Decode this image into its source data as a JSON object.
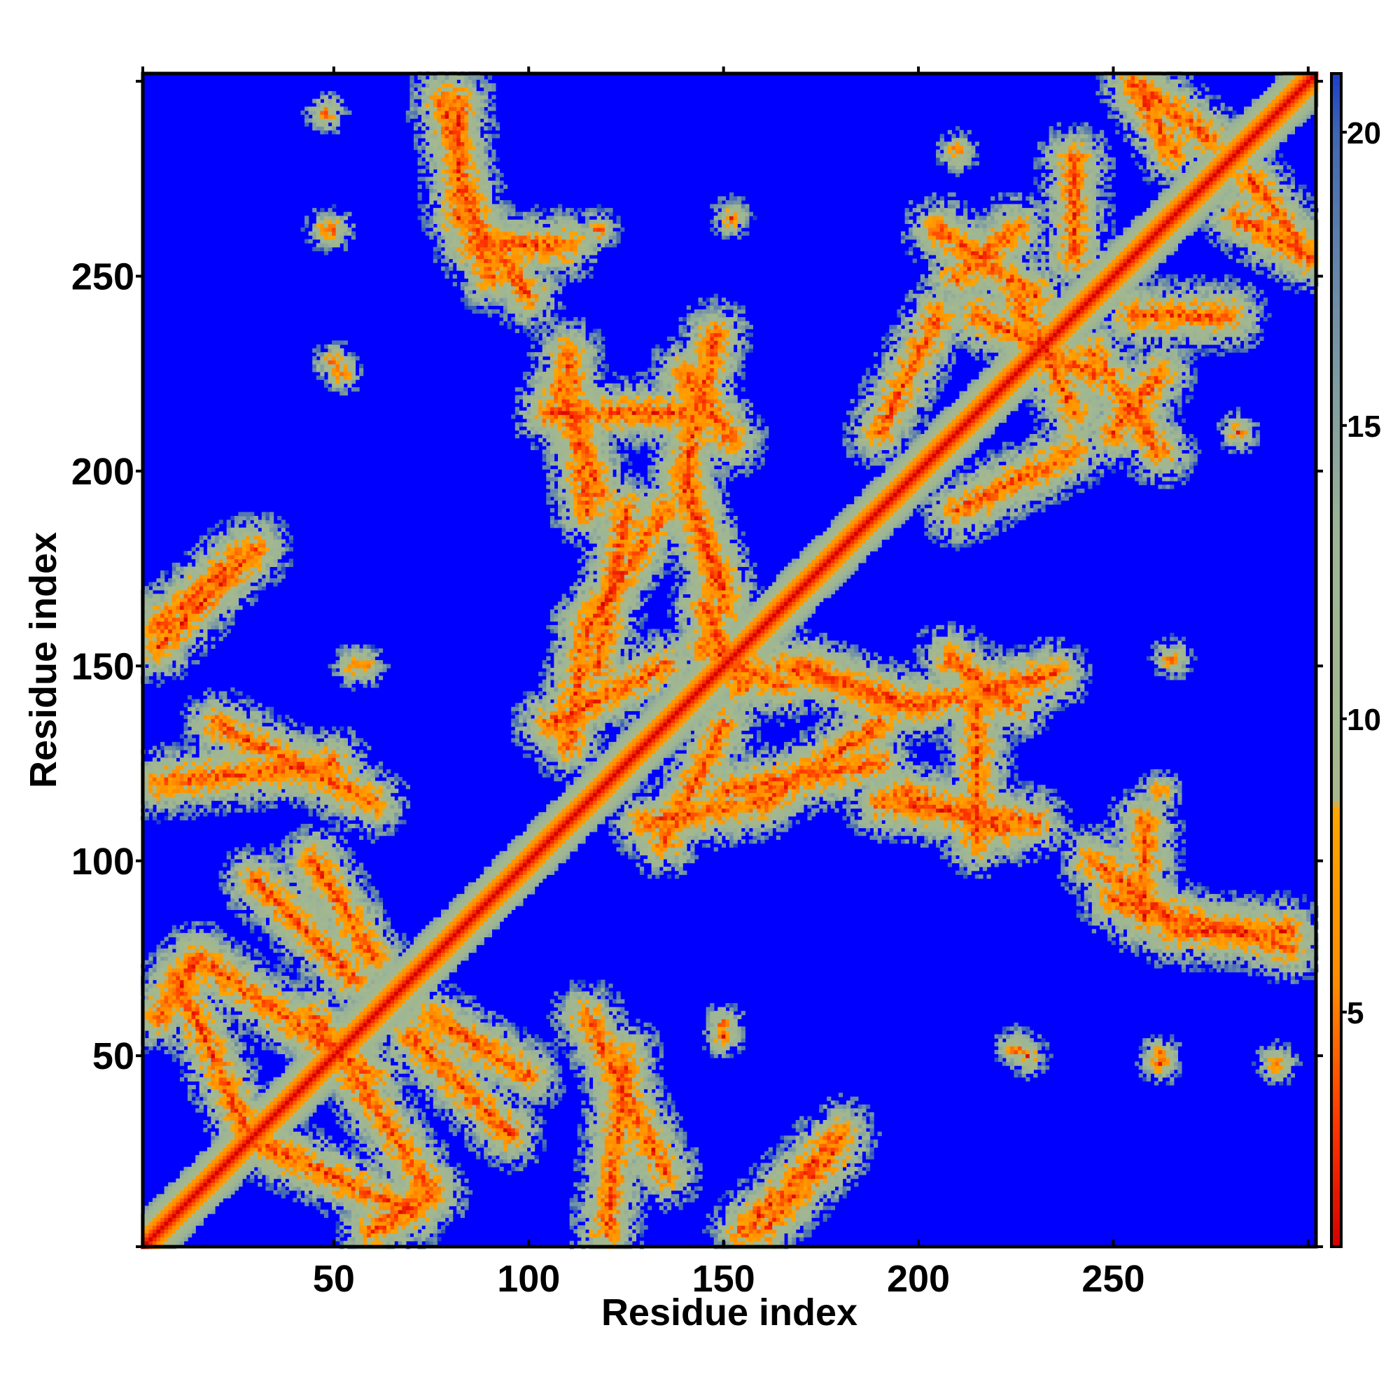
{
  "chart_data": {
    "type": "heatmap",
    "title": "",
    "xlabel": "Residue index",
    "ylabel": "Residue index",
    "n_residues": 302,
    "xlim": [
      1,
      302
    ],
    "ylim": [
      1,
      302
    ],
    "x_ticks": [
      50,
      100,
      150,
      200,
      250
    ],
    "y_ticks": [
      50,
      100,
      150,
      200,
      250
    ],
    "colorbar": {
      "range": [
        1,
        21
      ],
      "ticks": [
        5,
        10,
        15,
        20
      ],
      "stops": [
        {
          "value": 1,
          "color": "#d40000"
        },
        {
          "value": 3,
          "color": "#ff3300"
        },
        {
          "value": 5.5,
          "color": "#ff8c00"
        },
        {
          "value": 8.5,
          "color": "#ffa500"
        },
        {
          "value": 8.6,
          "color": "#a6b98c"
        },
        {
          "value": 13,
          "color": "#9db596"
        },
        {
          "value": 17,
          "color": "#6f8fa8"
        },
        {
          "value": 20,
          "color": "#3f66b3"
        },
        {
          "value": 21,
          "color": "#1c3fc9"
        }
      ]
    },
    "background_color": "#0000ff",
    "contact_features": [
      {
        "kind": "diagonal",
        "x1": 1,
        "y1": 1,
        "x2": 302,
        "y2": 302
      },
      {
        "kind": "band",
        "x1": 5,
        "y1": 60,
        "x2": 15,
        "y2": 75
      },
      {
        "kind": "band",
        "x1": 15,
        "y1": 75,
        "x2": 60,
        "y2": 45
      },
      {
        "kind": "band",
        "x1": 30,
        "y1": 28,
        "x2": 70,
        "y2": 10
      },
      {
        "kind": "band",
        "x1": 45,
        "y1": 100,
        "x2": 60,
        "y2": 75
      },
      {
        "kind": "band",
        "x1": 70,
        "y1": 55,
        "x2": 95,
        "y2": 30
      },
      {
        "kind": "band",
        "x1": 115,
        "y1": 60,
        "x2": 135,
        "y2": 20
      },
      {
        "kind": "band",
        "x1": 155,
        "y1": 5,
        "x2": 180,
        "y2": 30
      },
      {
        "kind": "band",
        "x1": 5,
        "y1": 120,
        "x2": 50,
        "y2": 125
      },
      {
        "kind": "band",
        "x1": 5,
        "y1": 160,
        "x2": 25,
        "y2": 178
      },
      {
        "kind": "band",
        "x1": 105,
        "y1": 135,
        "x2": 135,
        "y2": 150
      },
      {
        "kind": "band",
        "x1": 118,
        "y1": 150,
        "x2": 125,
        "y2": 190
      },
      {
        "kind": "band",
        "x1": 130,
        "y1": 110,
        "x2": 160,
        "y2": 115
      },
      {
        "kind": "band",
        "x1": 145,
        "y1": 155,
        "x2": 165,
        "y2": 145
      },
      {
        "kind": "band",
        "x1": 140,
        "y1": 195,
        "x2": 150,
        "y2": 170
      },
      {
        "kind": "band",
        "x1": 108,
        "y1": 222,
        "x2": 118,
        "y2": 195
      },
      {
        "kind": "band",
        "x1": 165,
        "y1": 150,
        "x2": 200,
        "y2": 140
      },
      {
        "kind": "band",
        "x1": 160,
        "y1": 115,
        "x2": 190,
        "y2": 135
      },
      {
        "kind": "band",
        "x1": 190,
        "y1": 115,
        "x2": 230,
        "y2": 110
      },
      {
        "kind": "band",
        "x1": 200,
        "y1": 140,
        "x2": 235,
        "y2": 148
      },
      {
        "kind": "band",
        "x1": 245,
        "y1": 100,
        "x2": 265,
        "y2": 85
      },
      {
        "kind": "band",
        "x1": 265,
        "y1": 82,
        "x2": 295,
        "y2": 82
      },
      {
        "kind": "band",
        "x1": 225,
        "y1": 245,
        "x2": 240,
        "y2": 215
      },
      {
        "kind": "band",
        "x1": 210,
        "y1": 250,
        "x2": 225,
        "y2": 262
      },
      {
        "kind": "band",
        "x1": 245,
        "y1": 230,
        "x2": 262,
        "y2": 205
      },
      {
        "kind": "band",
        "x1": 255,
        "y1": 240,
        "x2": 280,
        "y2": 240
      },
      {
        "kind": "band",
        "x1": 258,
        "y1": 298,
        "x2": 275,
        "y2": 285
      },
      {
        "kind": "band",
        "x1": 282,
        "y1": 265,
        "x2": 300,
        "y2": 255
      },
      {
        "kind": "band",
        "x1": 78,
        "y1": 295,
        "x2": 90,
        "y2": 250
      },
      {
        "kind": "band",
        "x1": 85,
        "y1": 258,
        "x2": 110,
        "y2": 258
      },
      {
        "kind": "band",
        "x1": 105,
        "y1": 215,
        "x2": 140,
        "y2": 215
      },
      {
        "kind": "band",
        "x1": 140,
        "y1": 225,
        "x2": 152,
        "y2": 208
      },
      {
        "kind": "band",
        "x1": 210,
        "y1": 190,
        "x2": 240,
        "y2": 205
      },
      {
        "kind": "blob",
        "x": 55,
        "y": 150
      },
      {
        "kind": "blob",
        "x": 50,
        "y": 228
      },
      {
        "kind": "blob",
        "x": 50,
        "y": 262
      },
      {
        "kind": "blob",
        "x": 150,
        "y": 58
      },
      {
        "kind": "blob",
        "x": 225,
        "y": 52
      },
      {
        "kind": "blob",
        "x": 262,
        "y": 48
      },
      {
        "kind": "blob",
        "x": 292,
        "y": 48
      },
      {
        "kind": "blob",
        "x": 262,
        "y": 118
      },
      {
        "kind": "blob",
        "x": 265,
        "y": 152
      },
      {
        "kind": "blob",
        "x": 282,
        "y": 210
      }
    ]
  }
}
